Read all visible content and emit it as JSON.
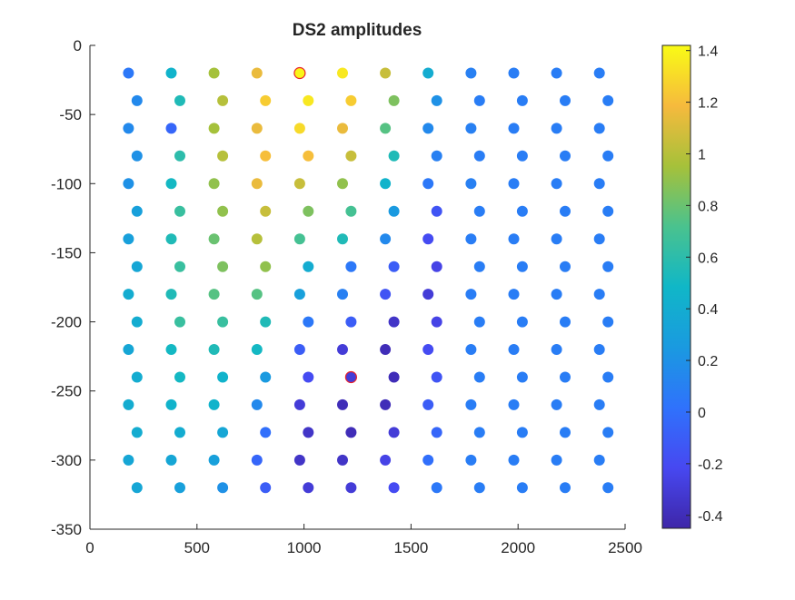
{
  "chart_data": {
    "type": "scatter",
    "title": "DS2 amplitudes",
    "xlabel": "",
    "ylabel": "",
    "xlim": [
      0,
      2500
    ],
    "ylim": [
      -350,
      0
    ],
    "xticks": [
      0,
      500,
      1000,
      1500,
      2000,
      2500
    ],
    "xtick_labels": [
      "0",
      "500",
      "1000",
      "1500",
      "2000",
      "2500"
    ],
    "yticks": [
      0,
      -50,
      -100,
      -150,
      -200,
      -250,
      -300,
      -350
    ],
    "ytick_labels": [
      "0",
      "-50",
      "-100",
      "-150",
      "-200",
      "-250",
      "-300",
      "-350"
    ],
    "grid": false,
    "legend": "none",
    "colorbar": {
      "colormap": "parula",
      "limits": [
        -0.45,
        1.42
      ],
      "ticks": [
        -0.4,
        -0.2,
        0,
        0.2,
        0.4,
        0.6,
        0.8,
        1,
        1.2,
        1.4
      ],
      "tick_labels": [
        "-0.4",
        "-0.2",
        "0",
        "0.2",
        "0.4",
        "0.6",
        "0.8",
        "1",
        "1.2",
        "1.4"
      ]
    },
    "highlighted": [
      {
        "x": 980,
        "y": -20
      },
      {
        "x": 1220,
        "y": -240
      }
    ],
    "marker_color_outline": "#e8202a",
    "rows": [
      {
        "y": -20,
        "x": [
          180,
          380,
          580,
          780,
          980,
          1180,
          1380,
          1580,
          1780,
          1980,
          2180,
          2380
        ],
        "v": [
          0.05,
          0.45,
          0.95,
          1.15,
          1.4,
          1.35,
          1.05,
          0.4,
          0.1,
          0.08,
          0.08,
          0.08
        ]
      },
      {
        "y": -40,
        "x": [
          220,
          420,
          620,
          820,
          1020,
          1220,
          1420,
          1620,
          1820,
          2020,
          2220,
          2420
        ],
        "v": [
          0.15,
          0.55,
          1.0,
          1.25,
          1.35,
          1.25,
          0.85,
          0.2,
          0.08,
          0.08,
          0.08,
          0.08
        ]
      },
      {
        "y": -60,
        "x": [
          180,
          380,
          580,
          780,
          980,
          1180,
          1380,
          1580,
          1780,
          1980,
          2180,
          2380
        ],
        "v": [
          0.15,
          -0.05,
          0.95,
          1.15,
          1.3,
          1.15,
          0.75,
          0.15,
          0.1,
          0.08,
          0.08,
          0.08
        ]
      },
      {
        "y": -80,
        "x": [
          220,
          420,
          620,
          820,
          1020,
          1220,
          1420,
          1620,
          1820,
          2020,
          2220,
          2420
        ],
        "v": [
          0.2,
          0.6,
          1.0,
          1.2,
          1.2,
          1.05,
          0.55,
          0.1,
          0.08,
          0.08,
          0.08,
          0.08
        ]
      },
      {
        "y": -100,
        "x": [
          180,
          380,
          580,
          780,
          980,
          1180,
          1380,
          1580,
          1780,
          1980,
          2180,
          2380
        ],
        "v": [
          0.2,
          0.5,
          0.9,
          1.15,
          1.05,
          0.9,
          0.45,
          0.05,
          0.1,
          0.08,
          0.08,
          0.08
        ]
      },
      {
        "y": -120,
        "x": [
          220,
          420,
          620,
          820,
          1020,
          1220,
          1420,
          1620,
          1820,
          2020,
          2220,
          2420
        ],
        "v": [
          0.3,
          0.65,
          0.9,
          1.05,
          0.85,
          0.7,
          0.25,
          -0.15,
          0.08,
          0.08,
          0.08,
          0.08
        ]
      },
      {
        "y": -140,
        "x": [
          180,
          380,
          580,
          780,
          980,
          1180,
          1380,
          1580,
          1780,
          1980,
          2180,
          2380
        ],
        "v": [
          0.3,
          0.55,
          0.8,
          1.0,
          0.7,
          0.55,
          0.15,
          -0.2,
          0.08,
          0.08,
          0.08,
          0.08
        ]
      },
      {
        "y": -160,
        "x": [
          220,
          420,
          620,
          820,
          1020,
          1220,
          1420,
          1620,
          1820,
          2020,
          2220,
          2420
        ],
        "v": [
          0.35,
          0.65,
          0.85,
          0.9,
          0.4,
          0.05,
          -0.1,
          -0.25,
          0.08,
          0.08,
          0.08,
          0.08
        ]
      },
      {
        "y": -180,
        "x": [
          180,
          380,
          580,
          780,
          980,
          1180,
          1380,
          1580,
          1780,
          1980,
          2180,
          2380
        ],
        "v": [
          0.4,
          0.55,
          0.75,
          0.75,
          0.3,
          0.1,
          -0.15,
          -0.3,
          0.08,
          0.08,
          0.08,
          0.08
        ]
      },
      {
        "y": -200,
        "x": [
          220,
          420,
          620,
          820,
          1020,
          1220,
          1420,
          1620,
          1820,
          2020,
          2220,
          2420
        ],
        "v": [
          0.4,
          0.65,
          0.65,
          0.55,
          0.05,
          -0.1,
          -0.35,
          -0.25,
          0.08,
          0.08,
          0.08,
          0.08
        ]
      },
      {
        "y": -220,
        "x": [
          180,
          380,
          580,
          780,
          980,
          1180,
          1380,
          1580,
          1780,
          1980,
          2180,
          2380
        ],
        "v": [
          0.35,
          0.5,
          0.55,
          0.5,
          -0.1,
          -0.3,
          -0.4,
          -0.2,
          0.08,
          0.08,
          0.08,
          0.08
        ]
      },
      {
        "y": -240,
        "x": [
          220,
          420,
          620,
          820,
          1020,
          1220,
          1420,
          1620,
          1820,
          2020,
          2220,
          2420
        ],
        "v": [
          0.4,
          0.5,
          0.45,
          0.25,
          -0.2,
          -0.3,
          -0.4,
          -0.15,
          0.08,
          0.08,
          0.08,
          0.08
        ]
      },
      {
        "y": -260,
        "x": [
          180,
          380,
          580,
          780,
          980,
          1180,
          1380,
          1580,
          1780,
          1980,
          2180,
          2380
        ],
        "v": [
          0.4,
          0.45,
          0.45,
          0.15,
          -0.3,
          -0.4,
          -0.4,
          -0.1,
          0.08,
          0.08,
          0.08,
          0.08
        ]
      },
      {
        "y": -280,
        "x": [
          220,
          420,
          620,
          820,
          1020,
          1220,
          1420,
          1620,
          1820,
          2020,
          2220,
          2420
        ],
        "v": [
          0.4,
          0.4,
          0.35,
          0.0,
          -0.35,
          -0.4,
          -0.3,
          -0.05,
          0.08,
          0.08,
          0.08,
          0.08
        ]
      },
      {
        "y": -300,
        "x": [
          180,
          380,
          580,
          780,
          980,
          1180,
          1380,
          1580,
          1780,
          1980,
          2180,
          2380
        ],
        "v": [
          0.35,
          0.35,
          0.3,
          -0.05,
          -0.35,
          -0.35,
          -0.25,
          0.0,
          0.08,
          0.08,
          0.08,
          0.08
        ]
      },
      {
        "y": -320,
        "x": [
          220,
          420,
          620,
          820,
          1020,
          1220,
          1420,
          1620,
          1820,
          2020,
          2220,
          2420
        ],
        "v": [
          0.35,
          0.3,
          0.2,
          -0.1,
          -0.3,
          -0.3,
          -0.2,
          0.05,
          0.08,
          0.08,
          0.08,
          0.08
        ]
      }
    ]
  }
}
